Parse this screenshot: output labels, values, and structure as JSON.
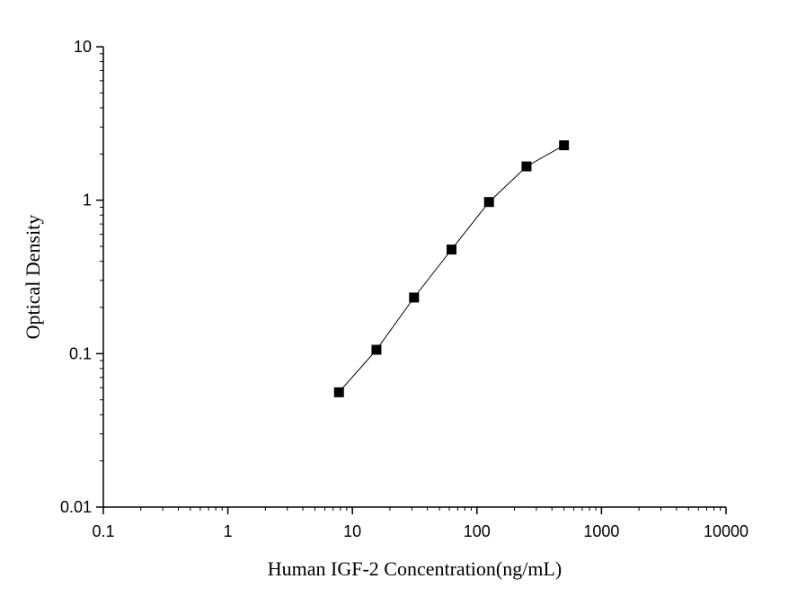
{
  "chart_data": {
    "type": "line",
    "xlabel": "Human IGF-2 Concentration(ng/mL)",
    "ylabel": "Optical Density",
    "x_scale": "log",
    "y_scale": "log",
    "xlim": [
      0.1,
      10000
    ],
    "ylim": [
      0.01,
      10
    ],
    "x_ticks": [
      {
        "value": 0.1,
        "label": "0.1"
      },
      {
        "value": 1,
        "label": "1"
      },
      {
        "value": 10,
        "label": "10"
      },
      {
        "value": 100,
        "label": "100"
      },
      {
        "value": 1000,
        "label": "1000"
      },
      {
        "value": 10000,
        "label": "10000"
      }
    ],
    "y_ticks": [
      {
        "value": 0.01,
        "label": "0.01"
      },
      {
        "value": 0.1,
        "label": "0.1"
      },
      {
        "value": 1,
        "label": "1"
      },
      {
        "value": 10,
        "label": "10"
      }
    ],
    "grid": false,
    "marker": "square",
    "series": [
      {
        "x": [
          7.8,
          15.6,
          31.25,
          62.5,
          125,
          250,
          500
        ],
        "y": [
          0.056,
          0.106,
          0.232,
          0.477,
          0.973,
          1.66,
          2.28
        ]
      }
    ],
    "colors": {
      "line": "#000000",
      "marker": "#000000",
      "axis": "#000000"
    }
  }
}
